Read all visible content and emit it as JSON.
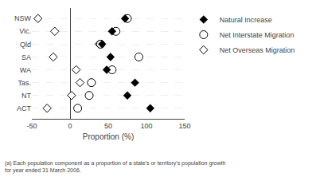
{
  "chart_data": {
    "type": "scatter",
    "orientation": "horizontal",
    "categories": [
      "NSW",
      "Vic.",
      "Qld",
      "SA",
      "WA",
      "Tas.",
      "NT",
      "ACT"
    ],
    "series": [
      {
        "name": "Natural Increase",
        "color": "#000000",
        "marker": "diamond",
        "values": [
          72,
          55,
          42,
          53,
          48,
          85,
          75,
          105
        ]
      },
      {
        "name": "Net Interstate Migration",
        "color": "#000000",
        "marker": "circle-open",
        "values": [
          75,
          60,
          40,
          90,
          55,
          28,
          25,
          10
        ]
      },
      {
        "name": "Net Overseas Migration",
        "color": "#000000",
        "marker": "diamond-open",
        "values": [
          -42,
          -20,
          38,
          -22,
          8,
          13,
          2,
          -30
        ]
      }
    ],
    "xlabel": "Proportion (%)",
    "xlim": [
      -50,
      150
    ],
    "xticks": [
      -50,
      0,
      50,
      100,
      150
    ],
    "grid": true,
    "legend": "upper right",
    "annotations": [
      "(a) Each population component as a proportion of a state's or territory's population growth\n for year ended 31 March 2006."
    ]
  }
}
